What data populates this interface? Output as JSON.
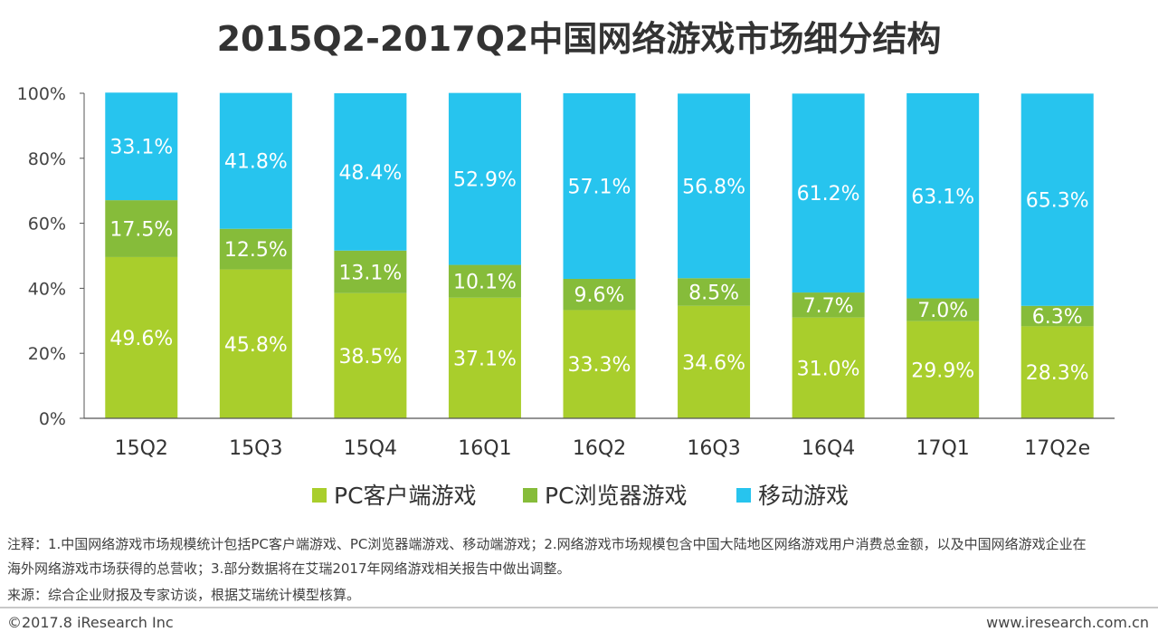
{
  "chart_data": {
    "type": "bar",
    "stacked": true,
    "title": "2015Q2-2017Q2中国网络游戏市场细分结构",
    "categories": [
      "15Q2",
      "15Q3",
      "15Q4",
      "16Q1",
      "16Q2",
      "16Q3",
      "16Q4",
      "17Q1",
      "17Q2e"
    ],
    "series": [
      {
        "name": "PC客户端游戏",
        "color": "#a9ce2c",
        "values": [
          49.6,
          45.8,
          38.5,
          37.1,
          33.3,
          34.6,
          31.0,
          29.9,
          28.3
        ],
        "labels": [
          "49.6%",
          "45.8%",
          "38.5%",
          "37.1%",
          "33.3%",
          "34.6%",
          "31.0%",
          "29.9%",
          "28.3%"
        ]
      },
      {
        "name": "PC浏览器游戏",
        "color": "#86bc3a",
        "values": [
          17.5,
          12.5,
          13.1,
          10.1,
          9.6,
          8.5,
          7.7,
          7.0,
          6.3
        ],
        "labels": [
          "17.5%",
          "12.5%",
          "13.1%",
          "10.1%",
          "9.6%",
          "8.5%",
          "7.7%",
          "7.0%",
          "6.3%"
        ]
      },
      {
        "name": "移动游戏",
        "color": "#27c4ee",
        "values": [
          33.1,
          41.8,
          48.4,
          52.9,
          57.1,
          56.8,
          61.2,
          63.1,
          65.3
        ],
        "labels": [
          "33.1%",
          "41.8%",
          "48.4%",
          "52.9%",
          "57.1%",
          "56.8%",
          "61.2%",
          "63.1%",
          "65.3%"
        ]
      }
    ],
    "yticks": [
      "0%",
      "20%",
      "40%",
      "60%",
      "80%",
      "100%"
    ],
    "ylim": [
      0,
      100
    ],
    "legend": "bottom-center"
  },
  "notes": {
    "line1": "注释：1.中国网络游戏市场规模统计包括PC客户端游戏、PC浏览器端游戏、移动端游戏；2.网络游戏市场规模包含中国大陆地区网络游戏用户消费总金额，以及中国网络游戏企业在",
    "line2": "海外网络游戏市场获得的总营收；3.部分数据将在艾瑞2017年网络游戏相关报告中做出调整。",
    "source": "来源：综合企业财报及专家访谈，根据艾瑞统计模型核算。"
  },
  "footer": {
    "copyright": "©2017.8 iResearch Inc",
    "website": "www.iresearch.com.cn"
  }
}
